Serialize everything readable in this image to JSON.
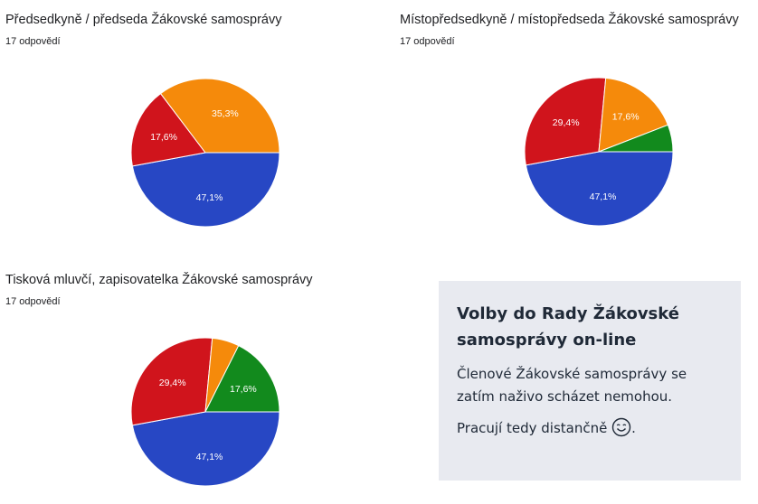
{
  "colors": {
    "blue": "#2747c4",
    "red": "#d0141c",
    "orange": "#f58a0b",
    "green": "#128a1d",
    "card_bg": "#e8eaf0"
  },
  "chart_data": [
    {
      "type": "pie",
      "title": "Předsedkyně / předseda Žákovské samosprávy",
      "subtitle": "17 odpovědí",
      "slices": [
        {
          "value": 47.1,
          "label": "47,1%",
          "color": "#2747c4"
        },
        {
          "value": 17.6,
          "label": "17,6%",
          "color": "#d0141c"
        },
        {
          "value": 35.3,
          "label": "35,3%",
          "color": "#f58a0b"
        }
      ]
    },
    {
      "type": "pie",
      "title": "Místopředsedkyně / místopředseda Žákovské samosprávy",
      "subtitle": "17 odpovědí",
      "slices": [
        {
          "value": 47.1,
          "label": "47,1%",
          "color": "#2747c4"
        },
        {
          "value": 29.4,
          "label": "29,4%",
          "color": "#d0141c"
        },
        {
          "value": 17.6,
          "label": "17,6%",
          "color": "#f58a0b"
        },
        {
          "value": 5.9,
          "label": "",
          "color": "#128a1d"
        }
      ]
    },
    {
      "type": "pie",
      "title": "Tisková mluvčí, zapisovatelka Žákovské samosprávy",
      "subtitle": "17 odpovědí",
      "slices": [
        {
          "value": 47.1,
          "label": "47,1%",
          "color": "#2747c4"
        },
        {
          "value": 29.4,
          "label": "29,4%",
          "color": "#d0141c"
        },
        {
          "value": 5.9,
          "label": "",
          "color": "#f58a0b"
        },
        {
          "value": 17.6,
          "label": "17,6%",
          "color": "#128a1d"
        }
      ]
    }
  ],
  "info_card": {
    "title": "Volby do Rady Žákovské samosprávy on-line",
    "text1": "Členové Žákovské samosprávy se zatím naživo scházet nemohou.",
    "text2": "Pracují tedy distančně",
    "text2_end": ".",
    "icon": "smiling-face-icon"
  }
}
